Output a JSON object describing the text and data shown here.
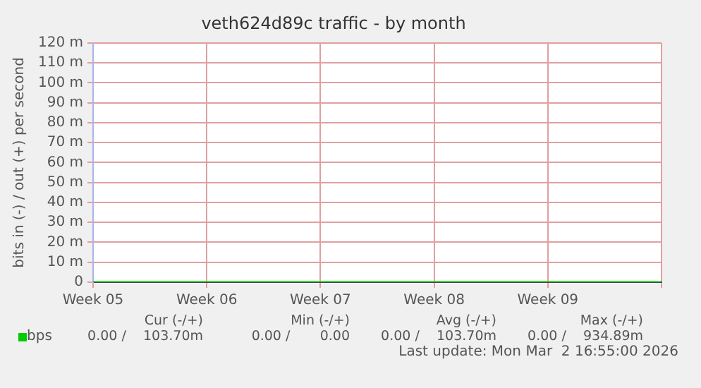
{
  "chart_data": {
    "type": "line",
    "title": "veth624d89c traffic - by month",
    "ylabel": "bits in (-) / out (+) per second",
    "categories": [
      "Week 05",
      "Week 06",
      "Week 07",
      "Week 08",
      "Week 09",
      null
    ],
    "series": [
      {
        "name": "bps",
        "color": "#00cc00",
        "values": [
          0,
          0,
          0,
          0,
          0,
          0
        ]
      }
    ],
    "ylim": [
      0,
      120
    ],
    "yticks": [
      0,
      {
        "value": 10,
        "label": "10 m"
      },
      {
        "value": 20,
        "label": "20 m"
      },
      {
        "value": 30,
        "label": "30 m"
      },
      {
        "value": 40,
        "label": "40 m"
      },
      {
        "value": 50,
        "label": "50 m"
      },
      {
        "value": 60,
        "label": "60 m"
      },
      {
        "value": 70,
        "label": "70 m"
      },
      {
        "value": 80,
        "label": "80 m"
      },
      {
        "value": 90,
        "label": "90 m"
      },
      {
        "value": 100,
        "label": "100 m"
      },
      {
        "value": 110,
        "label": "110 m"
      },
      {
        "value": 120,
        "label": "120 m"
      }
    ],
    "grid": true,
    "legend": "bottom left",
    "marker": "none",
    "line_style": "solid",
    "annotations": [
      "Cur (-/+)",
      "Min (-/+)",
      "Avg (-/+)",
      "Max (-/+)",
      "0.00 /    103.70m",
      "0.00 /       0.00",
      "0.00 /    103.70m",
      "0.00 /    934.89m",
      "Last update: Mon Mar  2 16:55:00 2026"
    ]
  }
}
